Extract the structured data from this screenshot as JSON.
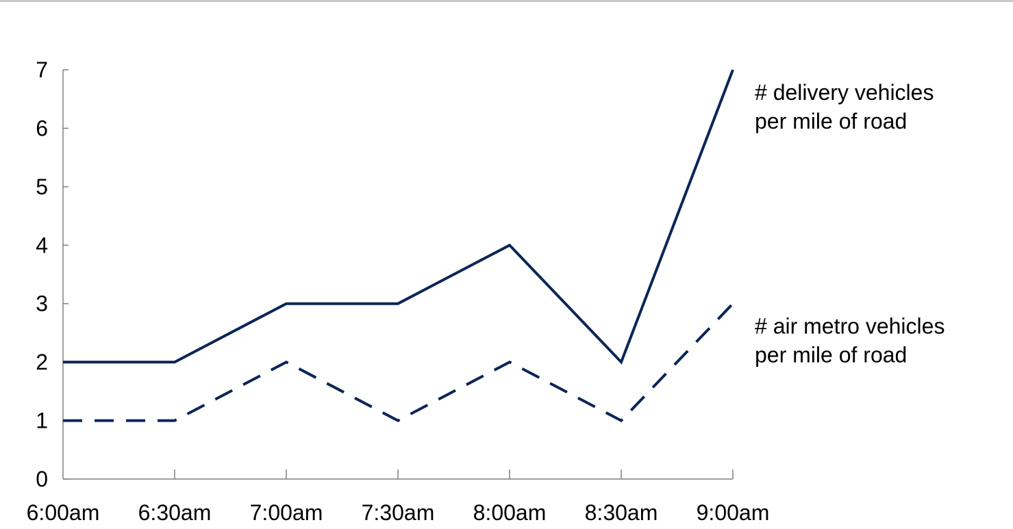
{
  "chart_data": {
    "type": "line",
    "title": "",
    "xlabel": "",
    "ylabel": "",
    "categories": [
      "6:00am",
      "6:30am",
      "7:00am",
      "7:30am",
      "8:00am",
      "8:30am",
      "9:00am"
    ],
    "ylim": [
      0,
      7
    ],
    "yticks": [
      "0",
      "1",
      "2",
      "3",
      "4",
      "5",
      "6",
      "7"
    ],
    "grid": false,
    "legend": "inline-right",
    "series": [
      {
        "name_lines": [
          "# delivery vehicles",
          "per mile of road"
        ],
        "values": [
          2,
          2,
          3,
          3,
          4,
          2,
          7
        ],
        "style": "solid",
        "color": "#0b2657"
      },
      {
        "name_lines": [
          "# air metro vehicles",
          "per mile of road"
        ],
        "values": [
          1,
          1,
          2,
          1,
          2,
          1,
          3
        ],
        "style": "dashed",
        "color": "#0b2657"
      }
    ],
    "axis_color": "#808080"
  }
}
